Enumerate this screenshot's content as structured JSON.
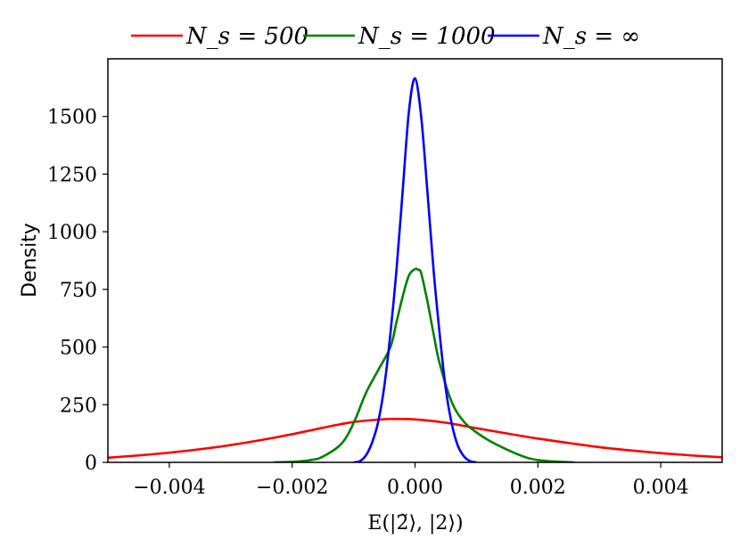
{
  "chart_data": {
    "type": "line",
    "xlabel": "E(|2̃⟩, |2⟩)",
    "ylabel": "Density",
    "xlim": [
      -0.005,
      0.005
    ],
    "ylim": [
      0,
      1750
    ],
    "xticks": [
      -0.004,
      -0.002,
      0.0,
      0.002,
      0.004
    ],
    "xtick_labels": [
      "−0.004",
      "−0.002",
      "0.000",
      "0.002",
      "0.004"
    ],
    "yticks": [
      0,
      250,
      500,
      750,
      1000,
      1250,
      1500
    ],
    "ytick_labels": [
      "0",
      "250",
      "500",
      "750",
      "1000",
      "1250",
      "1500"
    ],
    "legend_position": "top, outside",
    "grid": false,
    "series": [
      {
        "name": "N_s = 500",
        "legend_label": "N_s = 500",
        "color": "#ff0000",
        "x": [
          -0.005,
          -0.0045,
          -0.004,
          -0.0035,
          -0.003,
          -0.0025,
          -0.002,
          -0.0015,
          -0.001,
          -0.0005,
          -0.0003,
          0.0,
          0.0005,
          0.001,
          0.0015,
          0.002,
          0.0025,
          0.003,
          0.0035,
          0.004,
          0.0045,
          0.005
        ],
        "y": [
          20,
          30,
          42,
          57,
          75,
          97,
          122,
          150,
          175,
          187,
          188,
          186,
          172,
          148,
          125,
          103,
          84,
          66,
          52,
          40,
          30,
          22
        ]
      },
      {
        "name": "N_s = 1000",
        "legend_label": "N_s = 1000",
        "color": "#008000",
        "x": [
          -0.0023,
          -0.002,
          -0.0017,
          -0.0015,
          -0.0012,
          -0.001,
          -0.0008,
          -0.0006,
          -0.0004,
          -0.0003,
          -0.0002,
          -0.0001,
          0.0,
          5e-05,
          0.0001,
          0.0002,
          0.0003,
          0.0004,
          0.0006,
          0.0008,
          0.001,
          0.0012,
          0.0015,
          0.0018,
          0.002,
          0.0023,
          0.0026
        ],
        "y": [
          0,
          2,
          10,
          25,
          80,
          170,
          300,
          400,
          500,
          610,
          720,
          810,
          838,
          835,
          820,
          700,
          560,
          430,
          260,
          175,
          130,
          95,
          55,
          22,
          10,
          3,
          0
        ]
      },
      {
        "name": "N_s = ∞",
        "legend_label": "N_s = ∞",
        "color": "#0000ff",
        "x": [
          -0.001,
          -0.0009,
          -0.0008,
          -0.0007,
          -0.0006,
          -0.0005,
          -0.0004,
          -0.0003,
          -0.0002,
          -0.0001,
          0.0,
          0.0001,
          0.0002,
          0.0003,
          0.0004,
          0.0005,
          0.0006,
          0.0007,
          0.0008,
          0.0009,
          0.001
        ],
        "y": [
          0,
          5,
          30,
          85,
          175,
          330,
          560,
          840,
          1180,
          1520,
          1665,
          1500,
          1180,
          840,
          560,
          320,
          165,
          70,
          25,
          5,
          0
        ]
      }
    ]
  }
}
